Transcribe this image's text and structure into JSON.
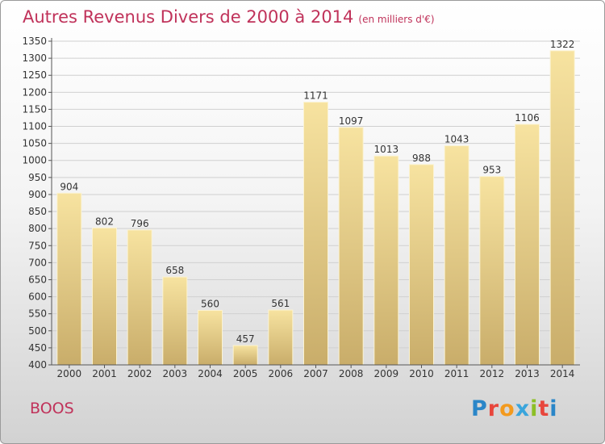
{
  "title": "Autres Revenus Divers de 2000 à 2014",
  "title_unit": "(en milliers d'€)",
  "location": "BOOS",
  "logo": {
    "text": "Proxiti",
    "letters": [
      "P",
      "r",
      "o",
      "x",
      "i",
      "t",
      "i"
    ],
    "colors": [
      "#2a86c8",
      "#e8463c",
      "#f39a1e",
      "#3aa5dc",
      "#8cbf26",
      "#e8463c",
      "#2a86c8"
    ]
  },
  "colors": {
    "title": "#c0325a",
    "bar_top": "#f7e3a0",
    "bar_bottom": "#c9ad6a",
    "grid": "#d0d0d0",
    "axis": "#555555"
  },
  "chart_data": {
    "type": "bar",
    "categories": [
      "2000",
      "2001",
      "2002",
      "2003",
      "2004",
      "2005",
      "2006",
      "2007",
      "2008",
      "2009",
      "2010",
      "2011",
      "2012",
      "2013",
      "2014"
    ],
    "values": [
      904,
      802,
      796,
      658,
      560,
      457,
      561,
      1171,
      1097,
      1013,
      988,
      1043,
      953,
      1106,
      1322
    ],
    "ylim": [
      400,
      1350
    ],
    "ytick_step": 50,
    "grid": true,
    "xlabel": "",
    "ylabel": ""
  }
}
